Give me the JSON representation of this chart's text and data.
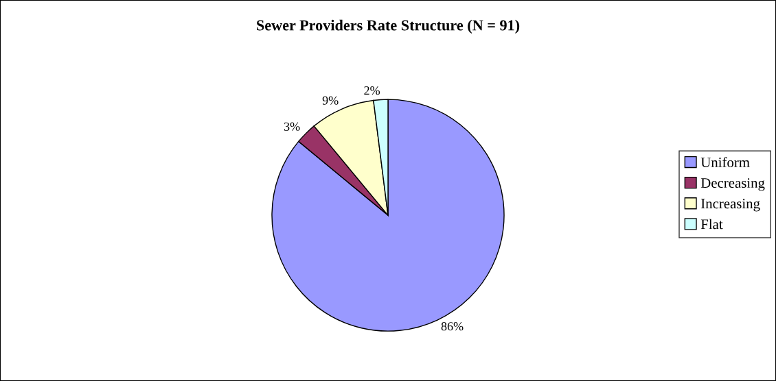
{
  "chart_data": {
    "type": "pie",
    "title": "Sewer Providers Rate Structure (N = 91)",
    "categories": [
      "Uniform",
      "Decreasing",
      "Increasing",
      "Flat"
    ],
    "values": [
      86,
      3,
      9,
      2
    ],
    "colors": [
      "#9999ff",
      "#993366",
      "#ffffcc",
      "#ccffff"
    ],
    "value_labels": [
      "86%",
      "3%",
      "9%",
      "2%"
    ],
    "legend": "right"
  }
}
